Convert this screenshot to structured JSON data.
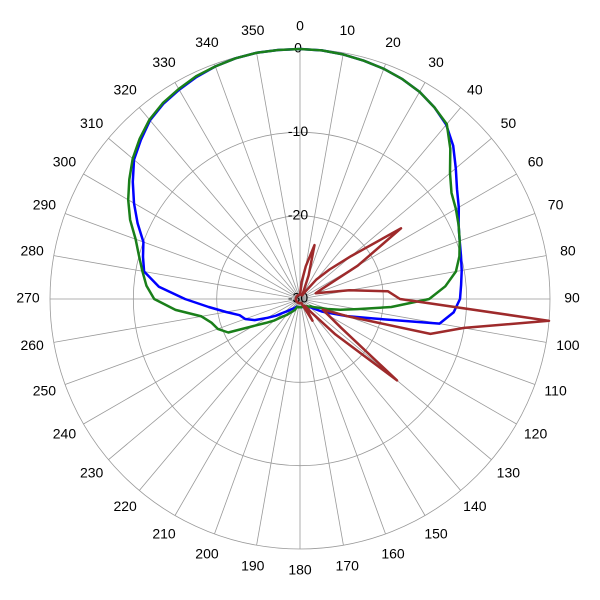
{
  "chart_data": {
    "type": "polar",
    "theta": [
      0,
      5,
      10,
      15,
      20,
      25,
      30,
      35,
      40,
      45,
      50,
      55,
      60,
      65,
      70,
      75,
      80,
      85,
      90,
      95,
      100,
      105,
      110,
      115,
      120,
      125,
      130,
      135,
      140,
      145,
      150,
      155,
      160,
      165,
      170,
      175,
      180,
      185,
      190,
      195,
      200,
      205,
      210,
      215,
      220,
      225,
      230,
      235,
      240,
      245,
      250,
      255,
      260,
      265,
      270,
      275,
      280,
      285,
      290,
      295,
      300,
      305,
      310,
      315,
      320,
      325,
      330,
      335,
      340,
      345,
      350,
      355
    ],
    "rlim": [
      -30,
      0
    ],
    "rticks": [
      -30,
      -20,
      -10,
      0
    ],
    "thetaticks": [
      0,
      10,
      20,
      30,
      40,
      50,
      60,
      70,
      80,
      90,
      100,
      110,
      120,
      130,
      140,
      150,
      160,
      170,
      180,
      190,
      200,
      210,
      220,
      230,
      240,
      250,
      260,
      270,
      280,
      290,
      300,
      310,
      320,
      330,
      340,
      350
    ],
    "grid": true,
    "series": [
      {
        "color": "#0000ff",
        "values": [
          0,
          -0.05,
          -0.2,
          -0.4,
          -0.6,
          -0.9,
          -1.3,
          -1.9,
          -2.7,
          -4,
          -5.6,
          -7,
          -8,
          -9,
          -9.6,
          -10,
          -10.3,
          -10.6,
          -10.8,
          -11.5,
          -13,
          -21,
          -24,
          -26,
          -27,
          -28,
          -28.5,
          -28.5,
          -28.8,
          -28.8,
          -29,
          -29,
          -29,
          -29,
          -29,
          -29,
          -29,
          -29,
          -29,
          -29,
          -29,
          -29,
          -28.8,
          -28.6,
          -28.4,
          -28,
          -27.5,
          -26.5,
          -25.5,
          -24,
          -23,
          -22.5,
          -21,
          -19,
          -16.2,
          -13,
          -11,
          -10.5,
          -10,
          -8.5,
          -7,
          -5.5,
          -4,
          -3,
          -2,
          -1.4,
          -1,
          -0.6,
          -0.3,
          -0.1,
          0,
          0
        ]
      },
      {
        "color": "#1a7f1a",
        "values": [
          0,
          -0.05,
          -0.2,
          -0.4,
          -0.6,
          -0.9,
          -1.3,
          -1.9,
          -2.6,
          -4.5,
          -6.5,
          -7.8,
          -8.4,
          -9,
          -9.6,
          -10.2,
          -11,
          -12.5,
          -14.5,
          -19,
          -23,
          -25,
          -26.5,
          -27.5,
          -28,
          -28.5,
          -28.5,
          -28.8,
          -28.8,
          -29,
          -29,
          -29,
          -29,
          -29,
          -29,
          -29,
          -29,
          -29,
          -29,
          -29,
          -29,
          -28.6,
          -28.3,
          -28,
          -27.5,
          -27,
          -26,
          -25,
          -23.5,
          -20.5,
          -19.5,
          -19,
          -18,
          -15,
          -12.5,
          -11.5,
          -10.8,
          -10,
          -9,
          -7.5,
          -6.2,
          -5,
          -3.8,
          -2.8,
          -1.9,
          -1.3,
          -0.9,
          -0.5,
          -0.3,
          -0.1,
          0,
          0
        ]
      },
      {
        "color": "#9e2a2b",
        "values": [
          -29.5,
          -28,
          -26,
          -23.3,
          -27,
          -29,
          -29.5,
          -29,
          -27,
          -25,
          -22,
          -15.2,
          -22,
          -27,
          -28,
          -27,
          -24,
          -19.4,
          -18,
          0,
          -10,
          -13.8,
          -24,
          -27,
          -26,
          -24,
          -14.8,
          -24,
          -28,
          -29,
          -27,
          -29,
          -29.5,
          -29.5,
          -29.5,
          -29.5,
          -29.5,
          -29.5,
          -29.5,
          -29.5,
          -29.5,
          -29.5,
          -29.5,
          -29.5,
          -29.5,
          -29.5,
          -29.5,
          -29.5,
          -29.5,
          -29.5,
          -29.5,
          -29.5,
          -29.5,
          -29.5,
          -29.5,
          -29.5,
          -29.5,
          -29.5,
          -29.5,
          -29.5,
          -29.5,
          -29.5,
          -29.5,
          -29.5,
          -29.5,
          -29.5,
          -29.5,
          -29.5,
          -29.5,
          -29.5,
          -29.5,
          -29.5
        ]
      }
    ]
  }
}
